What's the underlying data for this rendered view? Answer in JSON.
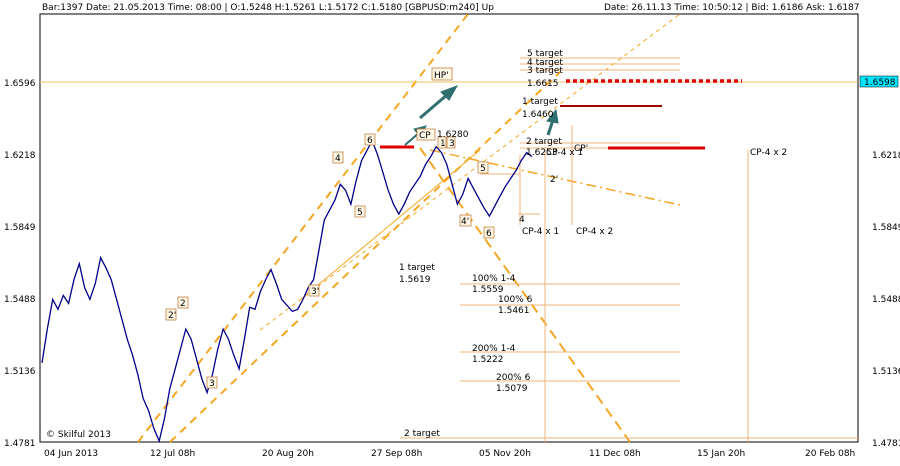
{
  "header": {
    "left": "Bar:1397  Date:  21.05.2013  Time:  08:00  | O:1.5248  H:1.5261  L:1.5172  C:1.5180   [GBPUSD:m240]  Up",
    "right": "Date:  26.11.13  Time:  10:50:12  |  Bid:  1.6186  Ask:  1.6187"
  },
  "watermark": "© Skilful 2013",
  "current_price_label": "1.6598",
  "colors": {
    "price": "#00008b",
    "trend_orange": "#f5a623",
    "level_line": "#f0b37a",
    "red_marker": "#e00000",
    "arrow_teal": "#2f6f6f",
    "background": "#ffffff",
    "price_tag": "#00e5ff"
  },
  "chart_data": {
    "type": "line",
    "symbol": "GBPUSD:m240",
    "y_ticks": [
      "1.6596",
      "1.6218",
      "1.5849",
      "1.5488",
      "1.5136",
      "1.4781"
    ],
    "y_range": [
      1.4781,
      1.6596
    ],
    "x_ticks": [
      "04 Jun 2013",
      "12 Jul 08h",
      "20 Aug 20h",
      "27 Sep 08h",
      "05 Nov 20h",
      "11 Dec 08h",
      "15 Jan 20h",
      "20 Feb 08h"
    ],
    "series": [
      {
        "values": [
          1.518,
          1.535,
          1.55,
          1.545,
          1.552,
          1.548,
          1.56,
          1.568,
          1.556,
          1.55,
          1.558,
          1.571,
          1.566,
          1.56,
          1.55,
          1.54,
          1.53,
          1.522,
          1.512,
          1.5,
          1.494,
          1.485,
          1.478,
          1.49,
          1.505,
          1.515,
          1.525,
          1.535,
          1.53,
          1.52,
          1.51,
          1.503,
          1.512,
          1.525,
          1.535,
          1.53,
          1.522,
          1.515,
          1.53,
          1.546,
          1.545,
          1.554,
          1.56,
          1.565,
          1.558,
          1.55,
          1.547,
          1.544,
          1.545,
          1.55,
          1.556,
          1.56,
          1.575,
          1.59,
          1.595,
          1.6,
          1.608,
          1.605,
          1.598,
          1.61,
          1.62,
          1.625,
          1.63,
          1.623,
          1.614,
          1.605,
          1.598,
          1.593,
          1.598,
          1.604,
          1.608,
          1.612,
          1.618,
          1.622,
          1.627,
          1.624,
          1.618,
          1.608,
          1.598,
          1.603,
          1.611,
          1.606,
          1.601,
          1.596,
          1.592,
          1.597,
          1.602,
          1.607,
          1.611,
          1.615,
          1.62,
          1.624,
          1.622
        ]
      }
    ],
    "wave_labels": [
      "2'",
      "2",
      "3",
      "3'",
      "4",
      "5",
      "6",
      "CP",
      "1",
      "3",
      "5",
      "4'",
      "6",
      "HP'"
    ],
    "annotations": [
      {
        "text": "5 target"
      },
      {
        "text": "4 target"
      },
      {
        "text": "3 target"
      },
      {
        "text": "1.6615"
      },
      {
        "text": "1 target"
      },
      {
        "text": "1.6460"
      },
      {
        "text": "1.6280"
      },
      {
        "text": "2 target"
      },
      {
        "text": "1.6253"
      },
      {
        "text": "CP-4 x 1"
      },
      {
        "text": "CP'"
      },
      {
        "text": "2'"
      },
      {
        "text": "4"
      },
      {
        "text": "CP-4 x 1"
      },
      {
        "text": "CP-4 x 2"
      },
      {
        "text": "CP-4 x 2"
      },
      {
        "text": "1 target"
      },
      {
        "text": "1.5619"
      },
      {
        "text": "100% 1-4"
      },
      {
        "text": "1.5559"
      },
      {
        "text": "100% 6"
      },
      {
        "text": "1.5461"
      },
      {
        "text": "200% 1-4"
      },
      {
        "text": "1.5222"
      },
      {
        "text": "200% 6"
      },
      {
        "text": "1.5079"
      },
      {
        "text": "2 target"
      }
    ]
  }
}
